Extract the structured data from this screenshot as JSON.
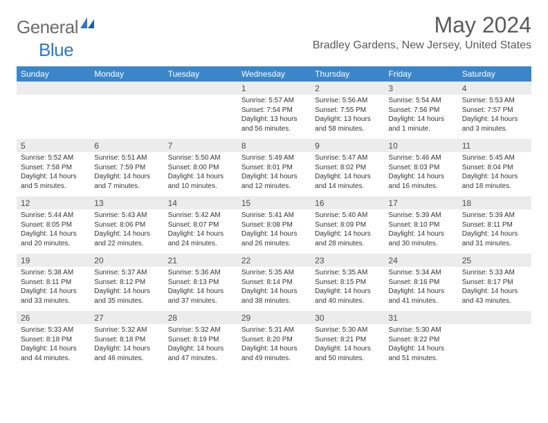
{
  "logo": {
    "text_gray": "General",
    "text_blue": "Blue"
  },
  "title": "May 2024",
  "location": "Bradley Gardens, New Jersey, United States",
  "colors": {
    "header_band": "#3b86c8",
    "daynum_band": "#ececec",
    "page_bg": "#ffffff",
    "text_gray": "#5a5a5a",
    "logo_blue": "#2f78c4"
  },
  "days_of_week": [
    "Sunday",
    "Monday",
    "Tuesday",
    "Wednesday",
    "Thursday",
    "Friday",
    "Saturday"
  ],
  "first_weekday_index": 3,
  "days": [
    {
      "n": 1,
      "sunrise": "5:57 AM",
      "sunset": "7:54 PM",
      "daylight": "13 hours and 56 minutes."
    },
    {
      "n": 2,
      "sunrise": "5:56 AM",
      "sunset": "7:55 PM",
      "daylight": "13 hours and 58 minutes."
    },
    {
      "n": 3,
      "sunrise": "5:54 AM",
      "sunset": "7:56 PM",
      "daylight": "14 hours and 1 minute."
    },
    {
      "n": 4,
      "sunrise": "5:53 AM",
      "sunset": "7:57 PM",
      "daylight": "14 hours and 3 minutes."
    },
    {
      "n": 5,
      "sunrise": "5:52 AM",
      "sunset": "7:58 PM",
      "daylight": "14 hours and 5 minutes."
    },
    {
      "n": 6,
      "sunrise": "5:51 AM",
      "sunset": "7:59 PM",
      "daylight": "14 hours and 7 minutes."
    },
    {
      "n": 7,
      "sunrise": "5:50 AM",
      "sunset": "8:00 PM",
      "daylight": "14 hours and 10 minutes."
    },
    {
      "n": 8,
      "sunrise": "5:49 AM",
      "sunset": "8:01 PM",
      "daylight": "14 hours and 12 minutes."
    },
    {
      "n": 9,
      "sunrise": "5:47 AM",
      "sunset": "8:02 PM",
      "daylight": "14 hours and 14 minutes."
    },
    {
      "n": 10,
      "sunrise": "5:46 AM",
      "sunset": "8:03 PM",
      "daylight": "14 hours and 16 minutes."
    },
    {
      "n": 11,
      "sunrise": "5:45 AM",
      "sunset": "8:04 PM",
      "daylight": "14 hours and 18 minutes."
    },
    {
      "n": 12,
      "sunrise": "5:44 AM",
      "sunset": "8:05 PM",
      "daylight": "14 hours and 20 minutes."
    },
    {
      "n": 13,
      "sunrise": "5:43 AM",
      "sunset": "8:06 PM",
      "daylight": "14 hours and 22 minutes."
    },
    {
      "n": 14,
      "sunrise": "5:42 AM",
      "sunset": "8:07 PM",
      "daylight": "14 hours and 24 minutes."
    },
    {
      "n": 15,
      "sunrise": "5:41 AM",
      "sunset": "8:08 PM",
      "daylight": "14 hours and 26 minutes."
    },
    {
      "n": 16,
      "sunrise": "5:40 AM",
      "sunset": "8:09 PM",
      "daylight": "14 hours and 28 minutes."
    },
    {
      "n": 17,
      "sunrise": "5:39 AM",
      "sunset": "8:10 PM",
      "daylight": "14 hours and 30 minutes."
    },
    {
      "n": 18,
      "sunrise": "5:39 AM",
      "sunset": "8:11 PM",
      "daylight": "14 hours and 31 minutes."
    },
    {
      "n": 19,
      "sunrise": "5:38 AM",
      "sunset": "8:11 PM",
      "daylight": "14 hours and 33 minutes."
    },
    {
      "n": 20,
      "sunrise": "5:37 AM",
      "sunset": "8:12 PM",
      "daylight": "14 hours and 35 minutes."
    },
    {
      "n": 21,
      "sunrise": "5:36 AM",
      "sunset": "8:13 PM",
      "daylight": "14 hours and 37 minutes."
    },
    {
      "n": 22,
      "sunrise": "5:35 AM",
      "sunset": "8:14 PM",
      "daylight": "14 hours and 38 minutes."
    },
    {
      "n": 23,
      "sunrise": "5:35 AM",
      "sunset": "8:15 PM",
      "daylight": "14 hours and 40 minutes."
    },
    {
      "n": 24,
      "sunrise": "5:34 AM",
      "sunset": "8:16 PM",
      "daylight": "14 hours and 41 minutes."
    },
    {
      "n": 25,
      "sunrise": "5:33 AM",
      "sunset": "8:17 PM",
      "daylight": "14 hours and 43 minutes."
    },
    {
      "n": 26,
      "sunrise": "5:33 AM",
      "sunset": "8:18 PM",
      "daylight": "14 hours and 44 minutes."
    },
    {
      "n": 27,
      "sunrise": "5:32 AM",
      "sunset": "8:18 PM",
      "daylight": "14 hours and 46 minutes."
    },
    {
      "n": 28,
      "sunrise": "5:32 AM",
      "sunset": "8:19 PM",
      "daylight": "14 hours and 47 minutes."
    },
    {
      "n": 29,
      "sunrise": "5:31 AM",
      "sunset": "8:20 PM",
      "daylight": "14 hours and 49 minutes."
    },
    {
      "n": 30,
      "sunrise": "5:30 AM",
      "sunset": "8:21 PM",
      "daylight": "14 hours and 50 minutes."
    },
    {
      "n": 31,
      "sunrise": "5:30 AM",
      "sunset": "8:22 PM",
      "daylight": "14 hours and 51 minutes."
    }
  ],
  "labels": {
    "sunrise": "Sunrise:",
    "sunset": "Sunset:",
    "daylight": "Daylight:"
  }
}
